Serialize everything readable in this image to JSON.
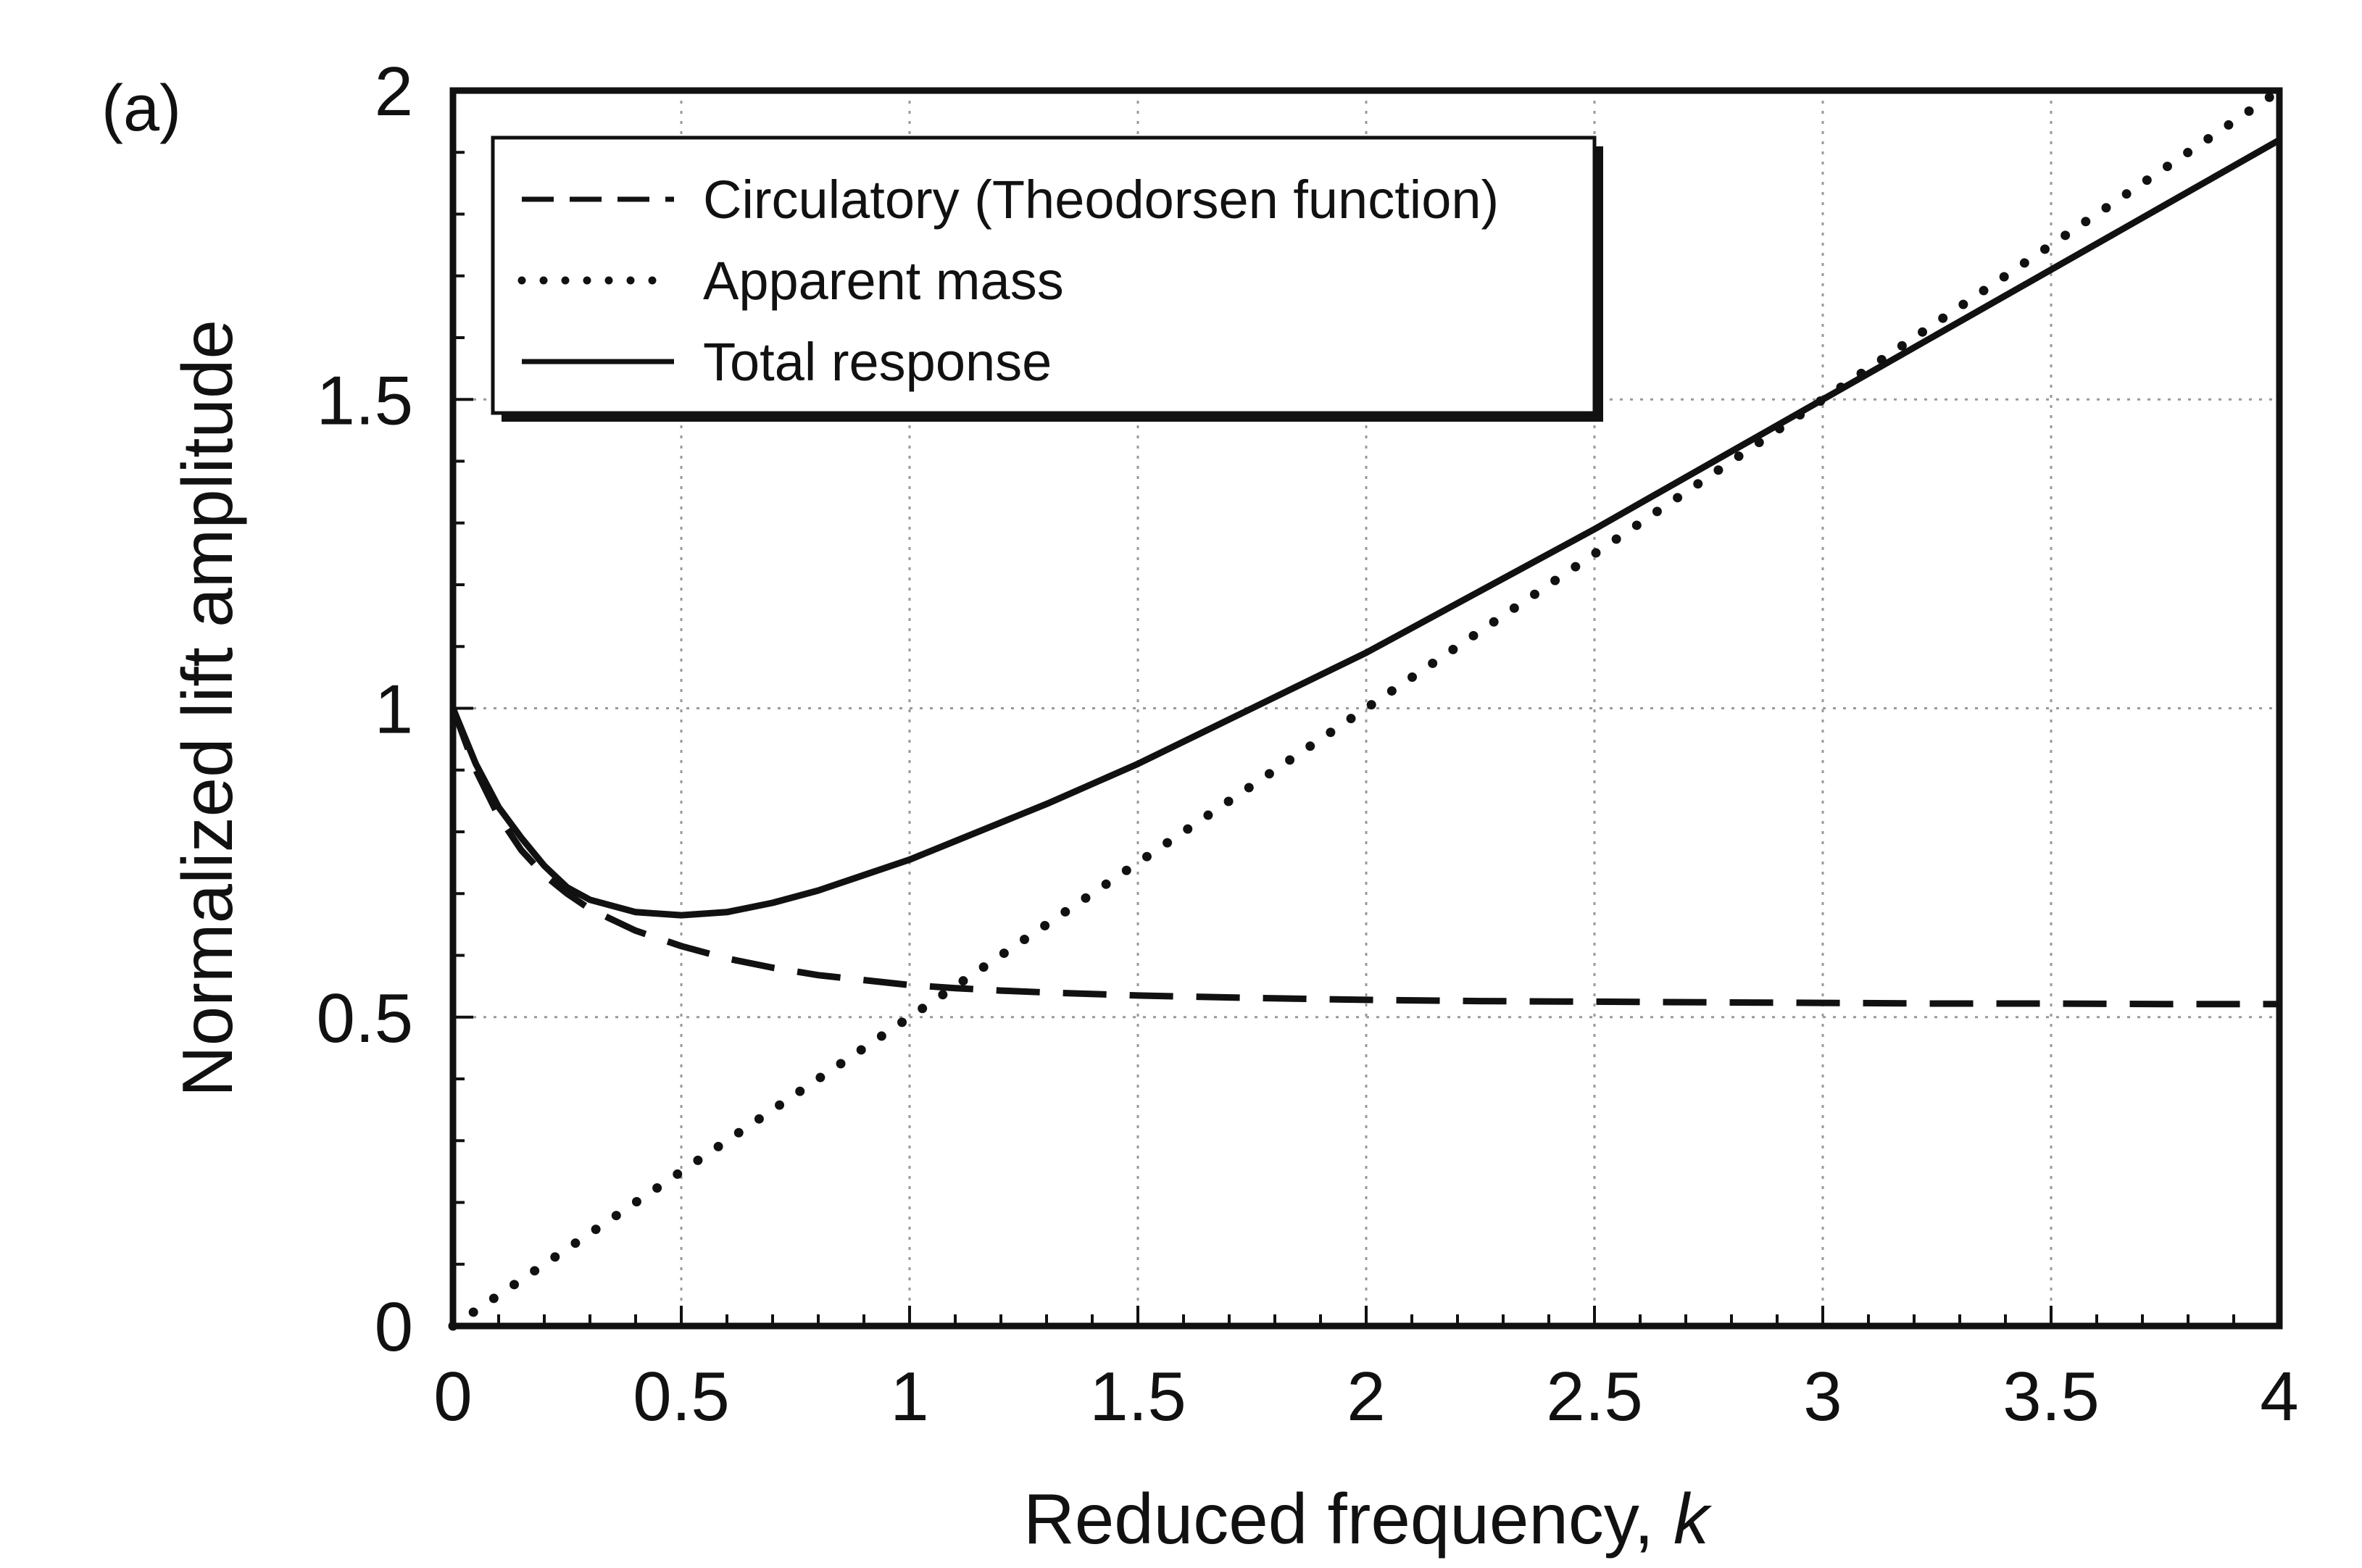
{
  "panel_label": "(a)",
  "chart_data": {
    "type": "line",
    "title": "",
    "xlabel": "Reduced frequency, ",
    "xlabel_var": "k",
    "ylabel": "Normalized lift amplitude",
    "xlim": [
      0,
      4
    ],
    "ylim": [
      0,
      2
    ],
    "xticks": [
      0,
      0.5,
      1,
      1.5,
      2,
      2.5,
      3,
      3.5,
      4
    ],
    "xtick_labels": [
      "0",
      "0.5",
      "1",
      "1.5",
      "2",
      "2.5",
      "3",
      "3.5",
      "4"
    ],
    "yticks": [
      0,
      0.5,
      1,
      1.5,
      2
    ],
    "ytick_labels": [
      "0",
      "0.5",
      "1",
      "1.5",
      "2"
    ],
    "grid": true,
    "legend_position": "top-left",
    "x": [
      0,
      0.05,
      0.1,
      0.15,
      0.2,
      0.25,
      0.3,
      0.4,
      0.5,
      0.6,
      0.7,
      0.8,
      0.9,
      1.0,
      1.1,
      1.2,
      1.3,
      1.5,
      1.75,
      2.0,
      2.25,
      2.5,
      2.75,
      3.0,
      3.25,
      3.5,
      3.75,
      4.0
    ],
    "series": [
      {
        "name": "Circulatory (Theodorsen function)",
        "style": "dashed",
        "values": [
          1.0,
          0.9,
          0.825,
          0.77,
          0.73,
          0.7,
          0.675,
          0.64,
          0.615,
          0.595,
          0.58,
          0.568,
          0.56,
          0.552,
          0.547,
          0.543,
          0.54,
          0.535,
          0.531,
          0.528,
          0.526,
          0.525,
          0.524,
          0.523,
          0.522,
          0.522,
          0.521,
          0.521
        ]
      },
      {
        "name": "Apparent mass",
        "style": "dotted",
        "values": [
          0.0,
          0.025,
          0.05,
          0.075,
          0.1,
          0.125,
          0.15,
          0.2,
          0.25,
          0.3,
          0.35,
          0.4,
          0.45,
          0.5,
          0.55,
          0.6,
          0.65,
          0.75,
          0.875,
          1.0,
          1.125,
          1.25,
          1.375,
          1.5,
          1.625,
          1.75,
          1.875,
          2.0
        ]
      },
      {
        "name": "Total response",
        "style": "solid",
        "values": [
          1.0,
          0.91,
          0.84,
          0.79,
          0.745,
          0.71,
          0.69,
          0.67,
          0.665,
          0.67,
          0.685,
          0.705,
          0.73,
          0.755,
          0.785,
          0.815,
          0.845,
          0.91,
          1.0,
          1.09,
          1.19,
          1.29,
          1.395,
          1.5,
          1.605,
          1.71,
          1.815,
          1.92
        ]
      }
    ]
  },
  "colors": {
    "line": "#111111",
    "grid": "#999999",
    "frame": "#111111",
    "background": "#ffffff"
  }
}
